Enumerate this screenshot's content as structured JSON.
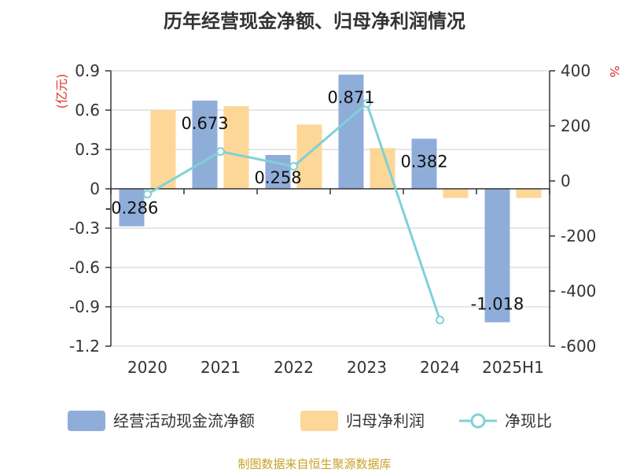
{
  "chart_data": {
    "type": "bar+line",
    "title": "历年经营现金净额、归母净利润情况",
    "categories": [
      "2020",
      "2021",
      "2022",
      "2023",
      "2024",
      "2025H1"
    ],
    "left_axis": {
      "unit": "(亿元)",
      "ylim": [
        -1.2,
        0.9
      ],
      "ticks": [
        "0.9",
        "0.6",
        "0.3",
        "0",
        "-0.3",
        "-0.6",
        "-0.9",
        "-1.2"
      ]
    },
    "right_axis": {
      "unit": "%",
      "ylim": [
        -600,
        400
      ],
      "ticks": [
        "400",
        "200",
        "0",
        "-200",
        "-400",
        "-600"
      ]
    },
    "series": [
      {
        "name": "经营活动现金流净额",
        "kind": "bar",
        "axis": "left",
        "color": "#8fadd9",
        "values": [
          -0.286,
          0.673,
          0.258,
          0.871,
          0.382,
          -1.018
        ],
        "labels": [
          "-0.286",
          "0.673",
          "0.258",
          "0.871",
          "0.382",
          "-1.018"
        ]
      },
      {
        "name": "归母净利润",
        "kind": "bar",
        "axis": "left",
        "color": "#fdd797",
        "values": [
          0.6,
          0.63,
          0.49,
          0.31,
          -0.07,
          -0.07
        ]
      },
      {
        "name": "净现比",
        "kind": "line",
        "axis": "right",
        "color": "#7fd1d6",
        "values": [
          -48,
          107,
          53,
          281,
          -505,
          null
        ]
      }
    ],
    "grid": true,
    "legend": "bottom"
  },
  "source": "制图数据来自恒生聚源数据库"
}
